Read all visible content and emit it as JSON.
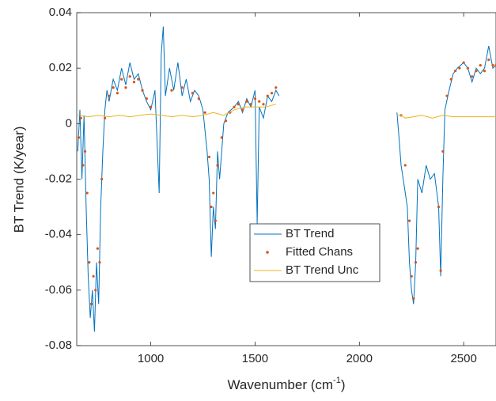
{
  "chart_data": {
    "type": "line",
    "xlabel": "Wavenumber (cm",
    "xlabel_sup": "-1",
    "xlabel_end": ")",
    "ylabel": "BT Trend (K/year)",
    "xlim": [
      645,
      2655
    ],
    "ylim": [
      -0.08,
      0.04
    ],
    "xticks": [
      1000,
      1500,
      2000,
      2500
    ],
    "yticks": [
      0.04,
      0.02,
      0,
      -0.02,
      -0.04,
      -0.06,
      -0.08
    ],
    "legend_loc": "south",
    "series": [
      {
        "name": "BT Trend",
        "color": "#0072BD",
        "style": "line",
        "x": [
          650,
          660,
          670,
          680,
          690,
          700,
          710,
          720,
          730,
          740,
          750,
          760,
          770,
          780,
          790,
          800,
          820,
          840,
          860,
          880,
          900,
          920,
          940,
          960,
          980,
          1000,
          1020,
          1040,
          1050,
          1060,
          1070,
          1090,
          1110,
          1130,
          1150,
          1170,
          1190,
          1210,
          1230,
          1250,
          1270,
          1280,
          1290,
          1300,
          1310,
          1320,
          1330,
          1350,
          1370,
          1400,
          1420,
          1440,
          1460,
          1480,
          1500,
          1510,
          1520,
          1540,
          1560,
          1580,
          1600,
          1615,
          1900,
          2180,
          2190,
          2200,
          2210,
          2220,
          2230,
          2240,
          2250,
          2260,
          2270,
          2280,
          2300,
          2320,
          2340,
          2360,
          2380,
          2390,
          2400,
          2410,
          2430,
          2450,
          2470,
          2500,
          2520,
          2540,
          2560,
          2580,
          2600,
          2620,
          2640,
          2655
        ],
        "values": [
          -0.01,
          0.005,
          -0.02,
          0.003,
          -0.03,
          -0.055,
          -0.07,
          -0.06,
          -0.075,
          -0.05,
          -0.065,
          -0.03,
          -0.01,
          0.005,
          0.012,
          0.008,
          0.016,
          0.012,
          0.02,
          0.014,
          0.022,
          0.016,
          0.018,
          0.012,
          0.008,
          0.005,
          0.012,
          -0.025,
          0.025,
          0.035,
          0.01,
          0.02,
          0.012,
          0.022,
          0.01,
          0.016,
          0.008,
          0.012,
          0.01,
          0.005,
          -0.01,
          -0.02,
          -0.048,
          -0.03,
          -0.038,
          -0.01,
          -0.02,
          0,
          0.004,
          0.006,
          0.008,
          0.004,
          0.009,
          0.006,
          0.012,
          -0.036,
          0.006,
          0.002,
          0.01,
          0.008,
          0.012,
          0.01,
          null,
          0.004,
          -0.005,
          -0.015,
          -0.02,
          -0.025,
          -0.03,
          -0.05,
          -0.06,
          -0.065,
          -0.05,
          -0.02,
          -0.025,
          -0.015,
          -0.02,
          -0.018,
          -0.03,
          -0.055,
          -0.02,
          0.005,
          0.012,
          0.018,
          0.02,
          0.022,
          0.02,
          0.015,
          0.02,
          0.018,
          0.02,
          0.028,
          0.02,
          0.021
        ]
      },
      {
        "name": "Fitted Chans",
        "color": "#D95319",
        "style": "dots",
        "x": [
          655,
          665,
          675,
          685,
          695,
          705,
          715,
          725,
          735,
          745,
          755,
          765,
          780,
          800,
          820,
          840,
          860,
          880,
          900,
          920,
          940,
          960,
          980,
          1000,
          1100,
          1150,
          1200,
          1230,
          1260,
          1280,
          1290,
          1300,
          1310,
          1320,
          1340,
          1360,
          1380,
          1400,
          1420,
          1440,
          1460,
          1480,
          1500,
          1520,
          1540,
          1560,
          1580,
          1600,
          2200,
          2220,
          2240,
          2250,
          2260,
          2270,
          2280,
          2380,
          2390,
          2400,
          2420,
          2440,
          2460,
          2480,
          2500,
          2520,
          2540,
          2560,
          2580,
          2600,
          2620,
          2640,
          2655
        ],
        "values": [
          -0.005,
          0.002,
          -0.015,
          -0.01,
          -0.025,
          -0.05,
          -0.065,
          -0.055,
          -0.06,
          -0.045,
          -0.05,
          -0.02,
          0.002,
          0.01,
          0.013,
          0.011,
          0.016,
          0.013,
          0.017,
          0.015,
          0.016,
          0.012,
          0.009,
          0.006,
          0.012,
          0.013,
          0.011,
          0.009,
          0.004,
          -0.012,
          -0.03,
          -0.025,
          -0.035,
          -0.015,
          -0.005,
          0.001,
          0.004,
          0.006,
          0.007,
          0.005,
          0.008,
          0.007,
          0.009,
          0.008,
          0.007,
          0.01,
          0.011,
          0.013,
          0.003,
          -0.015,
          -0.035,
          -0.055,
          -0.063,
          -0.05,
          -0.045,
          -0.03,
          -0.053,
          -0.01,
          0.01,
          0.016,
          0.019,
          0.02,
          0.022,
          0.02,
          0.017,
          0.019,
          0.021,
          0.019,
          0.023,
          0.021,
          0.021
        ]
      },
      {
        "name": "BT Trend Unc",
        "color": "#EDB120",
        "style": "line",
        "x": [
          650,
          700,
          750,
          800,
          850,
          900,
          950,
          1000,
          1050,
          1100,
          1150,
          1200,
          1250,
          1300,
          1350,
          1400,
          1450,
          1500,
          1550,
          1600,
          1900,
          2180,
          2200,
          2220,
          2260,
          2300,
          2350,
          2400,
          2450,
          2500,
          2550,
          2600,
          2655
        ],
        "values": [
          0.003,
          0.0025,
          0.003,
          0.0025,
          0.003,
          0.0025,
          0.003,
          0.0035,
          0.003,
          0.0025,
          0.003,
          0.0025,
          0.003,
          0.004,
          0.003,
          0.005,
          0.006,
          0.006,
          0.006,
          0.007,
          null,
          0.003,
          0.003,
          0.002,
          0.0025,
          0.003,
          0.002,
          0.003,
          0.0025,
          0.0025,
          0.0025,
          0.0025,
          0.0025
        ]
      }
    ]
  }
}
